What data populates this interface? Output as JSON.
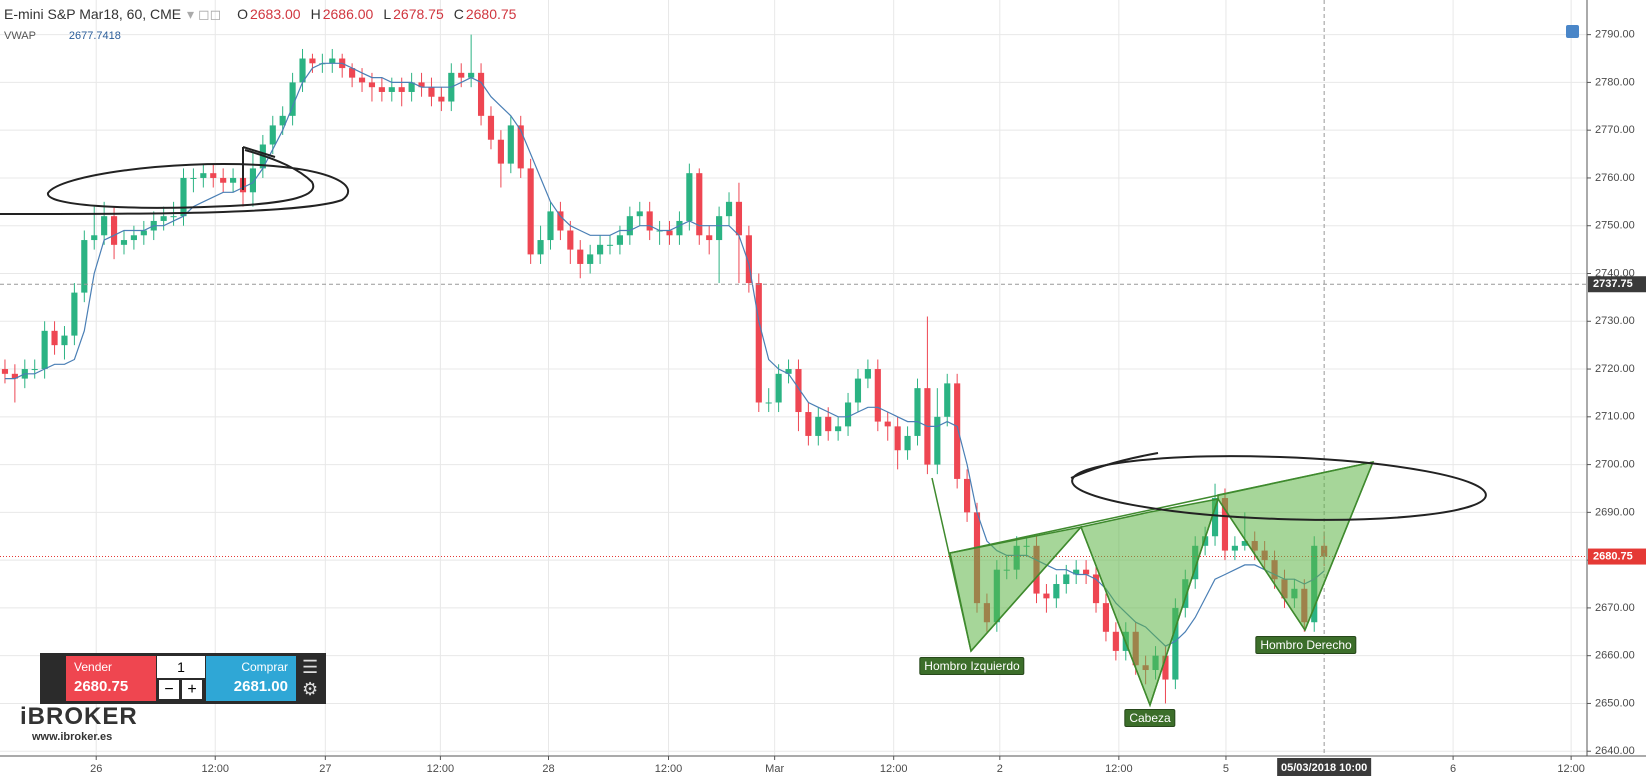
{
  "chart_data": {
    "type": "candlestick",
    "title": "E-mini S&P Mar18, 60, CME",
    "ohlc_labels": [
      {
        "key": "O",
        "label": "2683.00"
      },
      {
        "key": "H",
        "label": "2686.00"
      },
      {
        "key": "L",
        "label": "2678.75"
      },
      {
        "key": "C",
        "label": "2680.75"
      }
    ],
    "xlim": [
      -0.5,
      159.5
    ],
    "ylim": [
      2639,
      2797.25
    ],
    "grid": true,
    "xticks": [
      {
        "value": 9.2,
        "label": "26"
      },
      {
        "value": 21.2,
        "label": "12:00"
      },
      {
        "value": 32.3,
        "label": "27"
      },
      {
        "value": 43.9,
        "label": "12:00"
      },
      {
        "value": 54.8,
        "label": "28"
      },
      {
        "value": 66.9,
        "label": "12:00"
      },
      {
        "value": 77.6,
        "label": "Mar"
      },
      {
        "value": 89.6,
        "label": "12:00"
      },
      {
        "value": 100.3,
        "label": "2"
      },
      {
        "value": 112.3,
        "label": "12:00"
      },
      {
        "value": 123.1,
        "label": "5"
      },
      {
        "value": 146.0,
        "label": "6"
      },
      {
        "value": 157.9,
        "label": "12:00"
      }
    ],
    "yticks": [
      {
        "value": 2640,
        "label": "2640.00"
      },
      {
        "value": 2650,
        "label": "2650.00"
      },
      {
        "value": 2660,
        "label": "2660.00"
      },
      {
        "value": 2670,
        "label": "2670.00"
      },
      {
        "value": 2680,
        "label": "2680.00"
      },
      {
        "value": 2690,
        "label": "2690.00"
      },
      {
        "value": 2700,
        "label": "2700.00"
      },
      {
        "value": 2710,
        "label": "2710.00"
      },
      {
        "value": 2720,
        "label": "2720.00"
      },
      {
        "value": 2730,
        "label": "2730.00"
      },
      {
        "value": 2740,
        "label": "2740.00"
      },
      {
        "value": 2750,
        "label": "2750.00"
      },
      {
        "value": 2760,
        "label": "2760.00"
      },
      {
        "value": 2770,
        "label": "2770.00"
      },
      {
        "value": 2780,
        "label": "2780.00"
      },
      {
        "value": 2790,
        "label": "2790.00"
      }
    ],
    "series": [
      {
        "up_color": "#2bb383",
        "down_color": "#ee4652",
        "open": [
          2720,
          2719,
          2718,
          2720,
          2720,
          2728,
          2725,
          2727,
          2736,
          2747,
          2748,
          2752,
          2746,
          2747,
          2748,
          2749,
          2751,
          2752,
          2752,
          2760,
          2760,
          2761,
          2760,
          2759,
          2760,
          2757,
          2762,
          2767,
          2771,
          2773,
          2780,
          2785,
          2784,
          2784,
          2785,
          2783,
          2781,
          2780,
          2779,
          2778,
          2779,
          2778,
          2780,
          2779,
          2777,
          2776,
          2782,
          2781,
          2782,
          2773,
          2768,
          2763,
          2771,
          2762,
          2744,
          2747,
          2753,
          2749,
          2745,
          2742,
          2744,
          2746,
          2746,
          2748,
          2752,
          2753,
          2749,
          2749,
          2748,
          2751,
          2761,
          2748,
          2747,
          2752,
          2755,
          2748,
          2738,
          2713,
          2713,
          2719,
          2720,
          2711,
          2706,
          2710,
          2707,
          2708,
          2713,
          2718,
          2720,
          2709,
          2708,
          2703,
          2706,
          2716,
          2700,
          2710,
          2717,
          2697,
          2690,
          2671,
          2667,
          2678,
          2678,
          2683,
          2683,
          2673,
          2672,
          2675,
          2677,
          2678,
          2677,
          2671,
          2665,
          2661,
          2665,
          2658,
          2657,
          2660,
          2655,
          2670,
          2676,
          2683,
          2685,
          2693,
          2682,
          2683,
          2684,
          2682,
          2680,
          2676,
          2672,
          2674,
          2667,
          2683
        ],
        "high": [
          2722,
          2721,
          2722,
          2722,
          2730,
          2730,
          2729,
          2738,
          2749,
          2754,
          2755,
          2754,
          2749,
          2750,
          2751,
          2753,
          2754,
          2755,
          2762,
          2762,
          2763,
          2763,
          2762,
          2762,
          2763,
          2766,
          2769,
          2773,
          2775,
          2782,
          2787,
          2786,
          2786,
          2787,
          2786,
          2784,
          2783,
          2782,
          2781,
          2781,
          2781,
          2782,
          2782,
          2781,
          2779,
          2784,
          2784,
          2790,
          2784,
          2775,
          2770,
          2773,
          2773,
          2764,
          2750,
          2755,
          2755,
          2751,
          2747,
          2746,
          2748,
          2748,
          2750,
          2754,
          2755,
          2755,
          2751,
          2751,
          2753,
          2763,
          2762,
          2750,
          2754,
          2757,
          2759,
          2750,
          2740,
          2716,
          2721,
          2722,
          2722,
          2713,
          2712,
          2712,
          2710,
          2715,
          2720,
          2722,
          2722,
          2711,
          2710,
          2708,
          2718,
          2731,
          2716,
          2719,
          2719,
          2699,
          2692,
          2673,
          2680,
          2681,
          2685,
          2685,
          2685,
          2675,
          2677,
          2679,
          2680,
          2680,
          2679,
          2673,
          2667,
          2667,
          2667,
          2660,
          2662,
          2662,
          2672,
          2678,
          2685,
          2687,
          2696,
          2695,
          2685,
          2690,
          2686,
          2684,
          2682,
          2678,
          2676,
          2676,
          2685,
          2686
        ],
        "low": [
          2717,
          2713,
          2716,
          2718,
          2718,
          2723,
          2722,
          2725,
          2734,
          2745,
          2746,
          2743,
          2744,
          2745,
          2746,
          2747,
          2749,
          2750,
          2750,
          2757,
          2758,
          2758,
          2757,
          2757,
          2754,
          2754,
          2760,
          2765,
          2769,
          2771,
          2778,
          2782,
          2782,
          2782,
          2781,
          2779,
          2778,
          2776,
          2776,
          2776,
          2775,
          2776,
          2777,
          2775,
          2774,
          2774,
          2779,
          2779,
          2771,
          2766,
          2758,
          2761,
          2760,
          2742,
          2742,
          2745,
          2747,
          2742,
          2739,
          2740,
          2742,
          2744,
          2744,
          2746,
          2750,
          2747,
          2746,
          2746,
          2746,
          2749,
          2746,
          2744,
          2738,
          2750,
          2738,
          2736,
          2711,
          2711,
          2711,
          2717,
          2707,
          2704,
          2704,
          2705,
          2705,
          2706,
          2711,
          2716,
          2707,
          2705,
          2699,
          2701,
          2704,
          2698,
          2698,
          2708,
          2695,
          2688,
          2669,
          2665,
          2665,
          2676,
          2676,
          2681,
          2671,
          2669,
          2670,
          2673,
          2675,
          2675,
          2669,
          2663,
          2659,
          2659,
          2656,
          2654,
          2655,
          2650,
          2653,
          2668,
          2674,
          2681,
          2683,
          2680,
          2680,
          2682,
          2680,
          2678,
          2674,
          2670,
          2670,
          2665,
          2665,
          2678.75
        ],
        "close": [
          2719,
          2718,
          2720,
          2720,
          2728,
          2725,
          2727,
          2736,
          2747,
          2748,
          2752,
          2746,
          2747,
          2748,
          2749,
          2751,
          2752,
          2752,
          2760,
          2760,
          2761,
          2760,
          2759,
          2760,
          2757,
          2762,
          2767,
          2771,
          2773,
          2780,
          2785,
          2784,
          2784,
          2785,
          2783,
          2781,
          2780,
          2779,
          2778,
          2779,
          2778,
          2780,
          2779,
          2777,
          2776,
          2782,
          2781,
          2782,
          2773,
          2768,
          2763,
          2771,
          2762,
          2744,
          2747,
          2753,
          2749,
          2745,
          2742,
          2744,
          2746,
          2746,
          2748,
          2752,
          2753,
          2749,
          2749,
          2748,
          2751,
          2761,
          2748,
          2747,
          2752,
          2755,
          2748,
          2738,
          2713,
          2713,
          2719,
          2720,
          2711,
          2706,
          2710,
          2707,
          2708,
          2713,
          2718,
          2720,
          2709,
          2708,
          2703,
          2706,
          2716,
          2700,
          2710,
          2717,
          2697,
          2690,
          2671,
          2667,
          2678,
          2678,
          2683,
          2683,
          2673,
          2672,
          2675,
          2677,
          2678,
          2677,
          2671,
          2665,
          2661,
          2665,
          2658,
          2657,
          2660,
          2655,
          2670,
          2676,
          2683,
          2685,
          2693,
          2682,
          2683,
          2684,
          2682,
          2680,
          2676,
          2672,
          2674,
          2667,
          2683,
          2680.75
        ]
      },
      {
        "name": "VWAP",
        "color": "#4a7fb5",
        "values": [
          2718,
          2718,
          2719,
          2719,
          2720,
          2721,
          2721,
          2722,
          2728,
          2740,
          2747,
          2748,
          2749,
          2749,
          2749,
          2750,
          2750,
          2751,
          2752,
          2754,
          2755,
          2756,
          2757,
          2757,
          2758,
          2759,
          2762,
          2766,
          2770,
          2775,
          2780,
          2783,
          2784,
          2784,
          2784,
          2783,
          2782,
          2781,
          2781,
          2780,
          2780,
          2780,
          2779,
          2779,
          2779,
          2779,
          2780,
          2781,
          2780,
          2777,
          2775,
          2773,
          2770,
          2765,
          2760,
          2755,
          2752,
          2750,
          2749,
          2748,
          2748,
          2748,
          2749,
          2749,
          2750,
          2750,
          2749,
          2749,
          2750,
          2751,
          2750,
          2750,
          2750,
          2750,
          2748,
          2742,
          2730,
          2722,
          2720,
          2719,
          2716,
          2713,
          2712,
          2711,
          2710,
          2710,
          2711,
          2712,
          2712,
          2711,
          2710,
          2709,
          2709,
          2708,
          2708,
          2709,
          2708,
          2700,
          2690,
          2684,
          2682,
          2681,
          2681,
          2681,
          2680,
          2679,
          2678,
          2678,
          2677,
          2677,
          2676,
          2674,
          2671,
          2669,
          2667,
          2666,
          2664,
          2662,
          2663,
          2665,
          2668,
          2672,
          2676,
          2677,
          2678,
          2679,
          2679,
          2678,
          2677,
          2676,
          2676,
          2675,
          2676,
          2677.7418
        ]
      }
    ],
    "last_price": 2680.75,
    "last_price_color": "#e53935",
    "crosshair": {
      "y": 2737.75,
      "x": {
        "value": 133,
        "label": "05/03/2018 10:00"
      }
    },
    "pattern_labels": [
      "Hombro Izquierdo",
      "Cabeza",
      "Hombro Derecho"
    ],
    "trade_panel": {
      "sell_label": "Vender",
      "sell_price": "2680.75",
      "quantity": "1",
      "buy_label": "Comprar",
      "buy_price": "2681.00"
    },
    "brand": {
      "name": "iBROKER",
      "url": "www.ibroker.es"
    }
  }
}
